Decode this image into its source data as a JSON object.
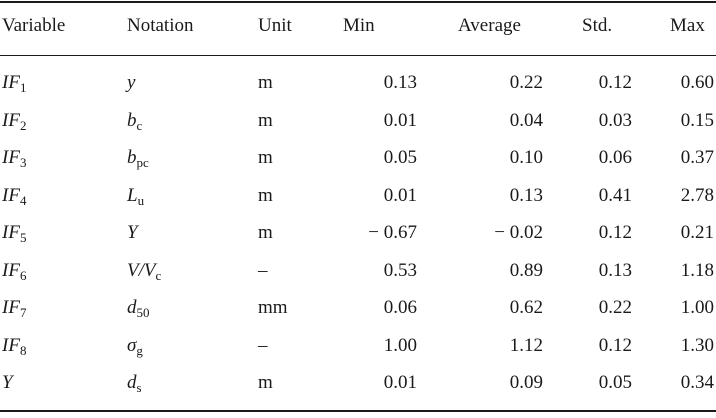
{
  "table": {
    "headers": {
      "variable": "Variable",
      "notation": "Notation",
      "unit": "Unit",
      "min": "Min",
      "average": "Average",
      "std": "Std.",
      "max": "Max"
    },
    "rows": [
      {
        "var_main": "IF",
        "var_sub": "1",
        "not_main": "y",
        "not_sub": "",
        "unit": "m",
        "min": "0.13",
        "avg": "0.22",
        "std": "0.12",
        "max": "0.60"
      },
      {
        "var_main": "IF",
        "var_sub": "2",
        "not_main": "b",
        "not_sub": "c",
        "unit": "m",
        "min": "0.01",
        "avg": "0.04",
        "std": "0.03",
        "max": "0.15"
      },
      {
        "var_main": "IF",
        "var_sub": "3",
        "not_main": "b",
        "not_sub": "pc",
        "unit": "m",
        "min": "0.05",
        "avg": "0.10",
        "std": "0.06",
        "max": "0.37"
      },
      {
        "var_main": "IF",
        "var_sub": "4",
        "not_main": "L",
        "not_sub": "u",
        "unit": "m",
        "min": "0.01",
        "avg": "0.13",
        "std": "0.41",
        "max": "2.78"
      },
      {
        "var_main": "IF",
        "var_sub": "5",
        "not_main": "Y",
        "not_sub": "",
        "unit": "m",
        "min": "− 0.67",
        "avg": "− 0.02",
        "std": "0.12",
        "max": "0.21"
      },
      {
        "var_main": "IF",
        "var_sub": "6",
        "not_main": "V/V",
        "not_sub": "c",
        "unit": "–",
        "min": "0.53",
        "avg": "0.89",
        "std": "0.13",
        "max": "1.18"
      },
      {
        "var_main": "IF",
        "var_sub": "7",
        "not_main": "d",
        "not_sub": "50",
        "unit": "mm",
        "min": "0.06",
        "avg": "0.62",
        "std": "0.22",
        "max": "1.00"
      },
      {
        "var_main": "IF",
        "var_sub": "8",
        "not_main": "σ",
        "not_sub": "g",
        "unit": "–",
        "min": "1.00",
        "avg": "1.12",
        "std": "0.12",
        "max": "1.30"
      },
      {
        "var_main": "Y",
        "var_sub": "",
        "not_main": "d",
        "not_sub": "s",
        "unit": "m",
        "min": "0.01",
        "avg": "0.09",
        "std": "0.05",
        "max": "0.34"
      }
    ]
  }
}
